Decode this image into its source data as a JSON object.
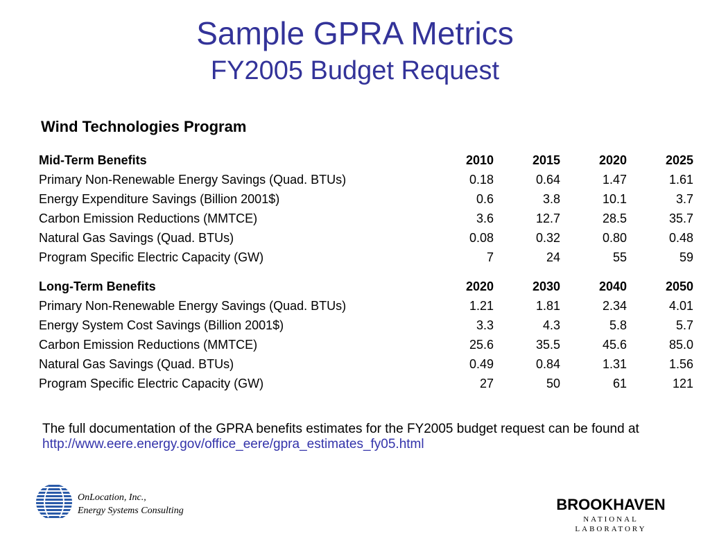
{
  "title": "Sample GPRA Metrics",
  "subtitle": "FY2005 Budget Request",
  "program": "Wind Technologies Program",
  "mid_term": {
    "header": "Mid-Term Benefits",
    "years": [
      "2010",
      "2015",
      "2020",
      "2025"
    ],
    "rows": [
      {
        "label": "Primary Non-Renewable Energy Savings (Quad. BTUs)",
        "values": [
          "0.18",
          "0.64",
          "1.47",
          "1.61"
        ]
      },
      {
        "label": "Energy Expenditure Savings (Billion 2001$)",
        "values": [
          "0.6",
          "3.8",
          "10.1",
          "3.7"
        ]
      },
      {
        "label": "Carbon Emission Reductions (MMTCE)",
        "values": [
          "3.6",
          "12.7",
          "28.5",
          "35.7"
        ]
      },
      {
        "label": "Natural Gas Savings (Quad. BTUs)",
        "values": [
          "0.08",
          "0.32",
          "0.80",
          "0.48"
        ]
      },
      {
        "label": "Program Specific Electric Capacity (GW)",
        "values": [
          "7",
          "24",
          "55",
          "59"
        ]
      }
    ]
  },
  "long_term": {
    "header": "Long-Term Benefits",
    "years": [
      "2020",
      "2030",
      "2040",
      "2050"
    ],
    "rows": [
      {
        "label": "Primary Non-Renewable Energy Savings (Quad. BTUs)",
        "values": [
          "1.21",
          "1.81",
          "2.34",
          "4.01"
        ]
      },
      {
        "label": "Energy System Cost Savings (Billion 2001$)",
        "values": [
          "3.3",
          "4.3",
          "5.8",
          "5.7"
        ]
      },
      {
        "label": "Carbon Emission Reductions (MMTCE)",
        "values": [
          "25.6",
          "35.5",
          "45.6",
          "85.0"
        ]
      },
      {
        "label": "Natural Gas Savings (Quad. BTUs)",
        "values": [
          "0.49",
          "0.84",
          "1.31",
          "1.56"
        ]
      },
      {
        "label": "Program Specific Electric Capacity (GW)",
        "values": [
          "27",
          "50",
          "61",
          "121"
        ]
      }
    ]
  },
  "note": {
    "text": "The full documentation of the GPRA benefits estimates for the FY2005 budget request can be found at",
    "link": "http://www.eere.energy.gov/office_eere/gpra_estimates_fy05.html"
  },
  "footer": {
    "company_line1": "OnLocation, Inc.,",
    "company_line2": "Energy Systems Consulting",
    "company_logo_icon": "striped-globe-icon",
    "lab_name": "BROOKHAVEN",
    "lab_subtitle": "NATIONAL LABORATORY"
  },
  "colors": {
    "title": "#333399",
    "link": "#3333aa",
    "globe": "#2a5aa8"
  }
}
